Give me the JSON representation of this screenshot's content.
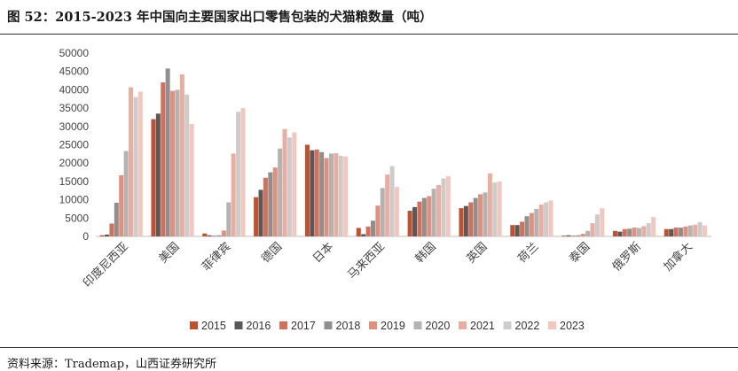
{
  "figure": {
    "title": "图 52：2015-2023 年中国向主要国家出口零售包装的犬猫粮数量（吨）",
    "source": "资料来源：Trademap，山西证券研究所"
  },
  "chart_data": {
    "type": "bar",
    "categories": [
      "印度尼西亚",
      "美国",
      "菲律宾",
      "德国",
      "日本",
      "马来西亚",
      "韩国",
      "英国",
      "荷兰",
      "泰国",
      "俄罗斯",
      "加拿大"
    ],
    "ylim": [
      0,
      50000
    ],
    "yticks": [
      0,
      5000,
      10000,
      15000,
      20000,
      25000,
      30000,
      35000,
      40000,
      45000,
      50000
    ],
    "grid": false,
    "legend_position": "bottom",
    "series": [
      {
        "name": "2015",
        "color": "#c0502e",
        "values": [
          300,
          32000,
          800,
          10700,
          25000,
          2300,
          7000,
          7700,
          3100,
          200,
          1500,
          2000
        ]
      },
      {
        "name": "2016",
        "color": "#595959",
        "values": [
          500,
          33500,
          300,
          12700,
          23500,
          600,
          8000,
          8300,
          3100,
          300,
          1300,
          2000
        ]
      },
      {
        "name": "2017",
        "color": "#d4705a",
        "values": [
          3500,
          42000,
          200,
          16000,
          23700,
          2700,
          9500,
          9300,
          4000,
          200,
          2000,
          2400
        ]
      },
      {
        "name": "2018",
        "color": "#8f8f8f",
        "values": [
          9200,
          45800,
          300,
          17500,
          23000,
          4300,
          10500,
          10500,
          5500,
          300,
          2100,
          2400
        ]
      },
      {
        "name": "2019",
        "color": "#e0907c",
        "values": [
          16700,
          39700,
          1600,
          18800,
          21400,
          8400,
          11000,
          11500,
          6400,
          700,
          2400,
          2700
        ]
      },
      {
        "name": "2020",
        "color": "#b3b3b3",
        "values": [
          23300,
          40000,
          9300,
          24000,
          22600,
          13200,
          13000,
          12000,
          7500,
          1500,
          2300,
          3000
        ]
      },
      {
        "name": "2021",
        "color": "#eaaea0",
        "values": [
          40700,
          44200,
          22600,
          29300,
          22700,
          16900,
          14000,
          17200,
          8700,
          3600,
          2800,
          3200
        ]
      },
      {
        "name": "2022",
        "color": "#cccccc",
        "values": [
          38000,
          38700,
          34000,
          27000,
          22000,
          19200,
          15800,
          14700,
          9300,
          6000,
          3600,
          3900
        ]
      },
      {
        "name": "2023",
        "color": "#f2c8be",
        "values": [
          39500,
          30700,
          35000,
          28400,
          21800,
          13500,
          16400,
          15000,
          9800,
          7700,
          5300,
          3000
        ]
      }
    ]
  }
}
